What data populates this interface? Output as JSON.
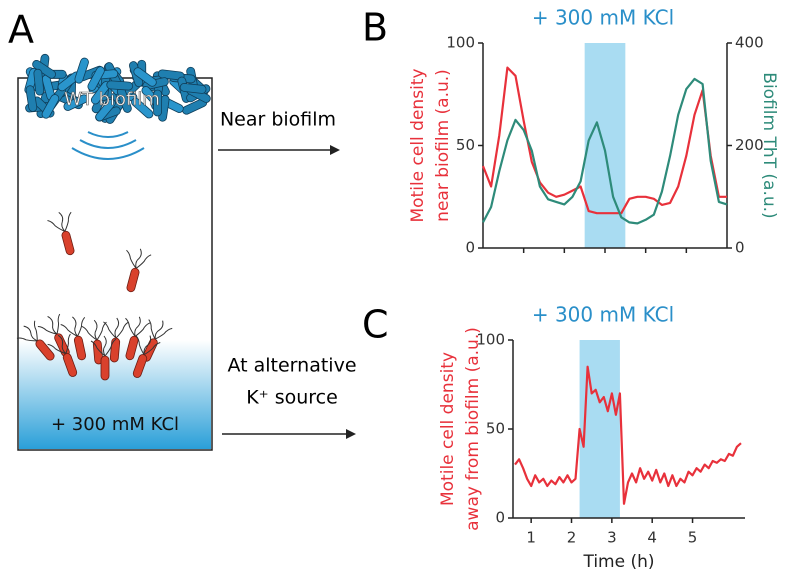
{
  "schematic": {
    "label": "A",
    "biofilm_label": "WT biofilm",
    "medium_label": "+ 300 mM KCl",
    "arrow_top_label": "Near biofilm",
    "arrow_bottom_label": [
      "At alternative",
      "K⁺ source"
    ]
  },
  "chart_data": [
    {
      "type": "line",
      "label": "B",
      "title": "+ 300 mM KCl",
      "y_label": [
        "Motile cell density",
        "near biofilm (a.u.)"
      ],
      "y2_label": "Biofilm ThT (a.u.)",
      "x": [
        0,
        0.2,
        0.4,
        0.6,
        0.8,
        1.0,
        1.2,
        1.4,
        1.6,
        1.8,
        2.0,
        2.2,
        2.4,
        2.6,
        2.8,
        3.0,
        3.2,
        3.4,
        3.6,
        3.8,
        4.0,
        4.2,
        4.4,
        4.6,
        4.8,
        5.0,
        5.2,
        5.4,
        5.6,
        5.8,
        6.0
      ],
      "xlim": [
        0,
        6
      ],
      "xticks": [
        1,
        2,
        3,
        4,
        5
      ],
      "show_xtick_labels": false,
      "ylim": [
        0,
        100
      ],
      "yticks": [
        0,
        50,
        100
      ],
      "y2lim": [
        0,
        400
      ],
      "y2ticks": [
        0,
        200,
        400
      ],
      "shaded_span": [
        2.5,
        3.5
      ],
      "shade_color": "#a9dcf2",
      "series": [
        {
          "name": "Motile cell density",
          "color": "#e8313b",
          "values": [
            40,
            30,
            55,
            88,
            84,
            62,
            42,
            32,
            27,
            25,
            26,
            28,
            30,
            18,
            17,
            17,
            17,
            17,
            24,
            25,
            25,
            24,
            21,
            22,
            30,
            45,
            65,
            77,
            45,
            25,
            25
          ]
        },
        {
          "name": "Biofilm ThT",
          "color": "#2e8b7a",
          "axis": "y2",
          "values": [
            50,
            80,
            150,
            210,
            250,
            230,
            190,
            120,
            95,
            90,
            85,
            100,
            130,
            210,
            245,
            190,
            100,
            60,
            50,
            48,
            55,
            65,
            110,
            180,
            260,
            310,
            330,
            320,
            170,
            90,
            85
          ]
        }
      ]
    },
    {
      "type": "line",
      "label": "C",
      "title": "+ 300 mM KCl",
      "y_label": [
        "Motile cell density",
        "away from biofilm (a.u.)"
      ],
      "x_label": "Time (h)",
      "x": [
        0.6,
        0.7,
        0.8,
        0.9,
        1.0,
        1.1,
        1.2,
        1.3,
        1.4,
        1.5,
        1.6,
        1.7,
        1.8,
        1.9,
        2.0,
        2.1,
        2.2,
        2.3,
        2.4,
        2.5,
        2.6,
        2.7,
        2.8,
        2.9,
        3.0,
        3.1,
        3.2,
        3.3,
        3.4,
        3.5,
        3.6,
        3.7,
        3.8,
        3.9,
        4.0,
        4.1,
        4.2,
        4.3,
        4.4,
        4.5,
        4.6,
        4.7,
        4.8,
        4.9,
        5.0,
        5.1,
        5.2,
        5.3,
        5.4,
        5.5,
        5.6,
        5.7,
        5.8,
        5.9,
        6.0,
        6.1,
        6.2
      ],
      "xlim": [
        0.55,
        6.3
      ],
      "xticks": [
        1,
        2,
        3,
        4,
        5
      ],
      "show_xtick_labels": true,
      "ylim": [
        0,
        100
      ],
      "yticks": [
        0,
        50,
        100
      ],
      "shaded_span": [
        2.2,
        3.2
      ],
      "shade_color": "#a9dcf2",
      "series": [
        {
          "name": "Motile cell density",
          "color": "#e8313b",
          "values": [
            30,
            33,
            28,
            22,
            18,
            24,
            20,
            22,
            18,
            21,
            19,
            23,
            20,
            24,
            20,
            22,
            50,
            40,
            85,
            70,
            72,
            65,
            68,
            60,
            70,
            58,
            70,
            8,
            20,
            25,
            20,
            28,
            22,
            26,
            21,
            27,
            20,
            25,
            18,
            24,
            18,
            22,
            20,
            26,
            24,
            28,
            26,
            30,
            28,
            32,
            31,
            33,
            32,
            36,
            35,
            40,
            42
          ]
        }
      ]
    }
  ]
}
